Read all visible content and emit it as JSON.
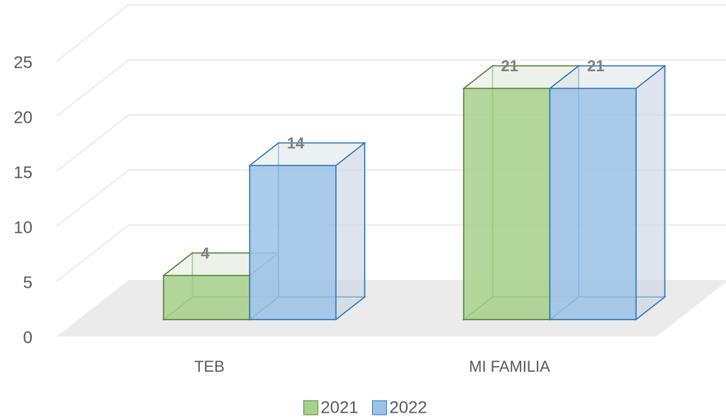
{
  "chart_data": {
    "type": "bar3d",
    "categories": [
      "TEB",
      "MI FAMILIA"
    ],
    "series": [
      {
        "name": "2021",
        "color": "#a9d18e",
        "values": [
          4,
          21
        ]
      },
      {
        "name": "2022",
        "color": "#9dc3e6",
        "values": [
          14,
          21
        ]
      }
    ],
    "ylim": [
      0,
      25
    ],
    "yticks": [
      0,
      5,
      10,
      15,
      20,
      25
    ],
    "grid": true,
    "legend": "bottom"
  }
}
